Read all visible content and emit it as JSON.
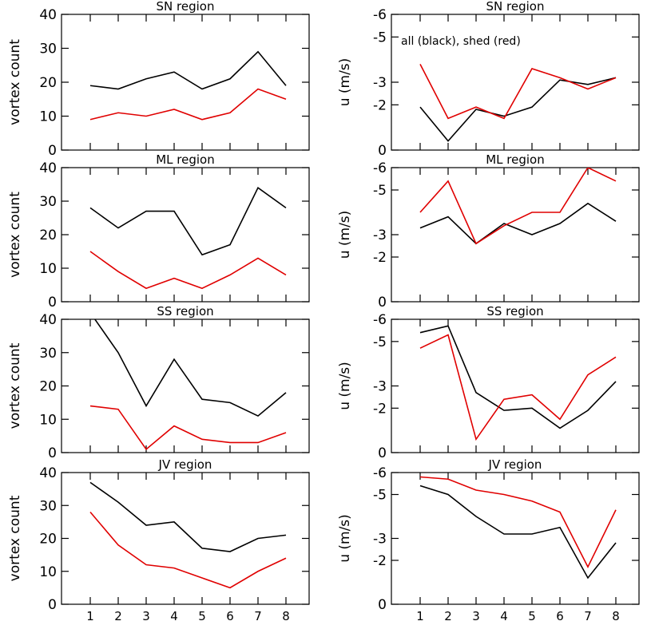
{
  "figure": {
    "legend_note": "all (black), shed (red)",
    "colors": {
      "all": "#000000",
      "shed": "#e00000",
      "axis": "#000000"
    }
  },
  "chart_data": [
    {
      "type": "line",
      "title": "SN region",
      "ylabel": "vortex count",
      "xlabel": "",
      "ylim": [
        0,
        40
      ],
      "yticks": [
        0,
        10,
        20,
        30,
        40
      ],
      "ytick_labels": [
        "0",
        "10",
        "20",
        "30",
        "40"
      ],
      "x": [
        1,
        2,
        3,
        4,
        5,
        6,
        7,
        8
      ],
      "xtick_labels": [],
      "series": [
        {
          "name": "all",
          "values": [
            19,
            18,
            21,
            23,
            18,
            21,
            29,
            19
          ]
        },
        {
          "name": "shed",
          "values": [
            9,
            11,
            10,
            12,
            9,
            11,
            18,
            15
          ]
        }
      ]
    },
    {
      "type": "line",
      "title": "SN region",
      "ylabel": "u (m/s)",
      "xlabel": "",
      "ylim": [
        0,
        6
      ],
      "yticks": [
        0,
        2,
        3,
        5,
        6
      ],
      "ytick_labels": [
        "0",
        "-2",
        "-3",
        "-5",
        "-6"
      ],
      "x": [
        1,
        2,
        3,
        4,
        5,
        6,
        7,
        8
      ],
      "xtick_labels": [],
      "series": [
        {
          "name": "all",
          "values": [
            1.9,
            0.4,
            1.8,
            1.5,
            1.9,
            3.1,
            2.9,
            3.2
          ]
        },
        {
          "name": "shed",
          "values": [
            3.8,
            1.4,
            1.9,
            1.4,
            3.6,
            3.2,
            2.7,
            3.2
          ]
        }
      ]
    },
    {
      "type": "line",
      "title": "ML region",
      "ylabel": "vortex count",
      "xlabel": "",
      "ylim": [
        0,
        40
      ],
      "yticks": [
        0,
        10,
        20,
        30,
        40
      ],
      "ytick_labels": [
        "0",
        "10",
        "20",
        "30",
        "40"
      ],
      "x": [
        1,
        2,
        3,
        4,
        5,
        6,
        7,
        8
      ],
      "xtick_labels": [],
      "series": [
        {
          "name": "all",
          "values": [
            28,
            22,
            27,
            27,
            14,
            17,
            34,
            28
          ]
        },
        {
          "name": "shed",
          "values": [
            15,
            9,
            4,
            7,
            4,
            8,
            13,
            8
          ]
        }
      ]
    },
    {
      "type": "line",
      "title": "ML region",
      "ylabel": "u (m/s)",
      "xlabel": "",
      "ylim": [
        0,
        6
      ],
      "yticks": [
        0,
        2,
        3,
        5,
        6
      ],
      "ytick_labels": [
        "0",
        "-2",
        "-3",
        "-5",
        "-6"
      ],
      "x": [
        1,
        2,
        3,
        4,
        5,
        6,
        7,
        8
      ],
      "xtick_labels": [],
      "series": [
        {
          "name": "all",
          "values": [
            3.3,
            3.8,
            2.6,
            3.5,
            3.0,
            3.5,
            4.4,
            3.6
          ]
        },
        {
          "name": "shed",
          "values": [
            4.0,
            5.4,
            2.6,
            3.4,
            4.0,
            4.0,
            6.0,
            5.4
          ]
        }
      ]
    },
    {
      "type": "line",
      "title": "SS region",
      "ylabel": "vortex count",
      "xlabel": "",
      "ylim": [
        0,
        40
      ],
      "yticks": [
        0,
        10,
        20,
        30,
        40
      ],
      "ytick_labels": [
        "0",
        "10",
        "20",
        "30",
        "40"
      ],
      "x": [
        1,
        2,
        3,
        4,
        5,
        6,
        7,
        8
      ],
      "xtick_labels": [],
      "series": [
        {
          "name": "all",
          "values": [
            42,
            30,
            14,
            28,
            16,
            15,
            11,
            18
          ]
        },
        {
          "name": "shed",
          "values": [
            14,
            13,
            1,
            8,
            4,
            3,
            3,
            6
          ]
        }
      ]
    },
    {
      "type": "line",
      "title": "SS region",
      "ylabel": "u (m/s)",
      "xlabel": "",
      "ylim": [
        0,
        6
      ],
      "yticks": [
        0,
        2,
        3,
        5,
        6
      ],
      "ytick_labels": [
        "0",
        "-2",
        "-3",
        "-5",
        "-6"
      ],
      "x": [
        1,
        2,
        3,
        4,
        5,
        6,
        7,
        8
      ],
      "xtick_labels": [],
      "series": [
        {
          "name": "all",
          "values": [
            5.4,
            5.7,
            2.7,
            1.9,
            2.0,
            1.1,
            1.9,
            3.2
          ]
        },
        {
          "name": "shed",
          "values": [
            4.7,
            5.3,
            0.6,
            2.4,
            2.6,
            1.5,
            3.5,
            4.3
          ]
        }
      ]
    },
    {
      "type": "line",
      "title": "JV region",
      "ylabel": "vortex count",
      "xlabel": "",
      "ylim": [
        0,
        40
      ],
      "yticks": [
        0,
        10,
        20,
        30,
        40
      ],
      "ytick_labels": [
        "0",
        "10",
        "20",
        "30",
        "40"
      ],
      "x": [
        1,
        2,
        3,
        4,
        5,
        6,
        7,
        8
      ],
      "xtick_labels": [
        "1",
        "2",
        "3",
        "4",
        "5",
        "6",
        "7",
        "8"
      ],
      "series": [
        {
          "name": "all",
          "values": [
            37,
            31,
            24,
            25,
            17,
            16,
            20,
            21
          ]
        },
        {
          "name": "shed",
          "values": [
            28,
            18,
            12,
            11,
            8,
            5,
            10,
            14
          ]
        }
      ]
    },
    {
      "type": "line",
      "title": "JV region",
      "ylabel": "u (m/s)",
      "xlabel": "",
      "ylim": [
        0,
        6
      ],
      "yticks": [
        0,
        2,
        3,
        5,
        6
      ],
      "ytick_labels": [
        "0",
        "-2",
        "-3",
        "-5",
        "-6"
      ],
      "x": [
        1,
        2,
        3,
        4,
        5,
        6,
        7,
        8
      ],
      "xtick_labels": [
        "1",
        "2",
        "3",
        "4",
        "5",
        "6",
        "7",
        "8"
      ],
      "series": [
        {
          "name": "all",
          "values": [
            5.4,
            5.0,
            4.0,
            3.2,
            3.2,
            3.5,
            1.2,
            2.8
          ]
        },
        {
          "name": "shed",
          "values": [
            5.8,
            5.7,
            5.2,
            5.0,
            4.7,
            4.2,
            1.7,
            4.3
          ]
        }
      ]
    }
  ]
}
